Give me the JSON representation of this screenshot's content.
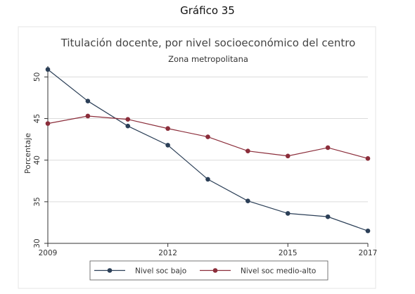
{
  "caption": "Gráfico 35",
  "colors": {
    "plot_bg": "#ffffff",
    "grid": "#dcdcdc",
    "frame": "#e4e4e4"
  },
  "chart_data": {
    "type": "line",
    "title": "Titulación docente, por nivel socioeconómico del centro",
    "subtitle": "Zona metropolitana",
    "xlabel": "",
    "ylabel": "Porcentaje",
    "x": [
      2009,
      2010,
      2011,
      2012,
      2013,
      2014,
      2015,
      2016,
      2017
    ],
    "xticks": [
      2009,
      2012,
      2015,
      2017
    ],
    "yticks": [
      30,
      35,
      40,
      45,
      50
    ],
    "xlim": [
      2009,
      2017
    ],
    "ylim": [
      30,
      51.3
    ],
    "grid": true,
    "legend_position": "bottom",
    "series": [
      {
        "name": "Nivel soc bajo",
        "color": "#2b3f57",
        "values": [
          50.9,
          47.1,
          44.1,
          41.8,
          37.7,
          35.1,
          33.6,
          33.2,
          31.5
        ]
      },
      {
        "name": "Nivel soc medio-alto",
        "color": "#8b2d3a",
        "values": [
          44.4,
          45.3,
          44.9,
          43.8,
          42.8,
          41.1,
          40.5,
          41.5,
          40.2
        ]
      }
    ]
  }
}
